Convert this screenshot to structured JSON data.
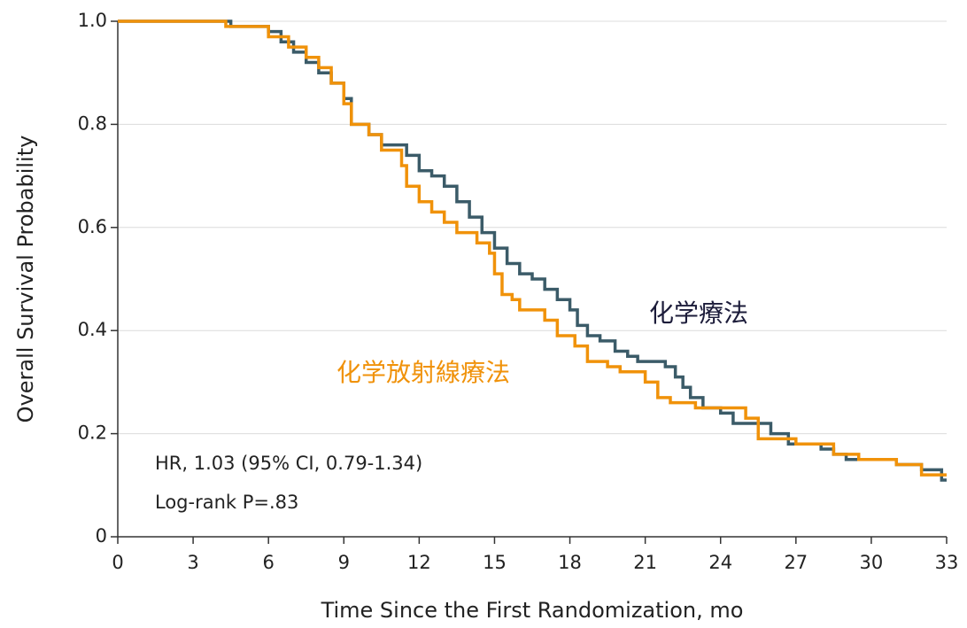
{
  "chart_data": {
    "type": "step",
    "x_label": "Time Since the First Randomization, mo",
    "y_label": "Overall Survival Probability",
    "xlim": [
      0,
      33
    ],
    "ylim": [
      0,
      1
    ],
    "xticks": [
      0,
      3,
      6,
      9,
      12,
      15,
      18,
      21,
      24,
      27,
      30,
      33
    ],
    "yticks": [
      0,
      0.2,
      0.4,
      0.6,
      0.8,
      {
        "value": 1,
        "label": "1.0"
      }
    ],
    "grid": true,
    "annotations": [
      "HR, 1.03 (95% CI, 0.79-1.34)",
      "Log-rank P=.83"
    ],
    "series": [
      {
        "name": "化学療法",
        "color": "#3b5b68",
        "x": [
          0,
          4.5,
          6,
          6.5,
          7,
          7.5,
          8,
          8.5,
          9,
          9.3,
          10,
          10.5,
          11.5,
          12,
          12.5,
          13,
          13.5,
          14,
          14.5,
          15,
          15.5,
          16,
          16.5,
          17,
          17.5,
          18,
          18.3,
          18.7,
          19.2,
          19.8,
          20.3,
          20.7,
          21.8,
          22.2,
          22.5,
          22.8,
          23.3,
          24,
          24.5,
          26,
          26.7,
          28,
          28.5,
          29,
          31,
          32,
          32.8,
          33
        ],
        "values": [
          1.0,
          0.99,
          0.98,
          0.96,
          0.94,
          0.92,
          0.9,
          0.88,
          0.85,
          0.8,
          0.78,
          0.76,
          0.74,
          0.71,
          0.7,
          0.68,
          0.65,
          0.62,
          0.59,
          0.56,
          0.53,
          0.51,
          0.5,
          0.48,
          0.46,
          0.44,
          0.41,
          0.39,
          0.38,
          0.36,
          0.35,
          0.34,
          0.33,
          0.31,
          0.29,
          0.27,
          0.25,
          0.24,
          0.22,
          0.2,
          0.18,
          0.17,
          0.16,
          0.15,
          0.14,
          0.13,
          0.11,
          0.11
        ]
      },
      {
        "name": "化学放射線療法",
        "color": "#f0920a",
        "x": [
          0,
          4.3,
          6,
          6.8,
          7.5,
          8,
          8.5,
          9,
          9.3,
          10,
          10.5,
          11.3,
          11.5,
          12,
          12.5,
          13,
          13.5,
          14.3,
          14.8,
          15,
          15.3,
          15.7,
          16,
          17,
          17.5,
          18.2,
          18.7,
          19.5,
          20,
          21,
          21.5,
          22,
          23,
          25,
          25.5,
          27,
          28.5,
          29.5,
          31,
          32,
          33
        ],
        "values": [
          1.0,
          0.99,
          0.97,
          0.95,
          0.93,
          0.91,
          0.88,
          0.84,
          0.8,
          0.78,
          0.75,
          0.72,
          0.68,
          0.65,
          0.63,
          0.61,
          0.59,
          0.57,
          0.55,
          0.51,
          0.47,
          0.46,
          0.44,
          0.42,
          0.39,
          0.37,
          0.34,
          0.33,
          0.32,
          0.3,
          0.27,
          0.26,
          0.25,
          0.23,
          0.19,
          0.18,
          0.16,
          0.15,
          0.14,
          0.12,
          0.12
        ]
      }
    ]
  }
}
